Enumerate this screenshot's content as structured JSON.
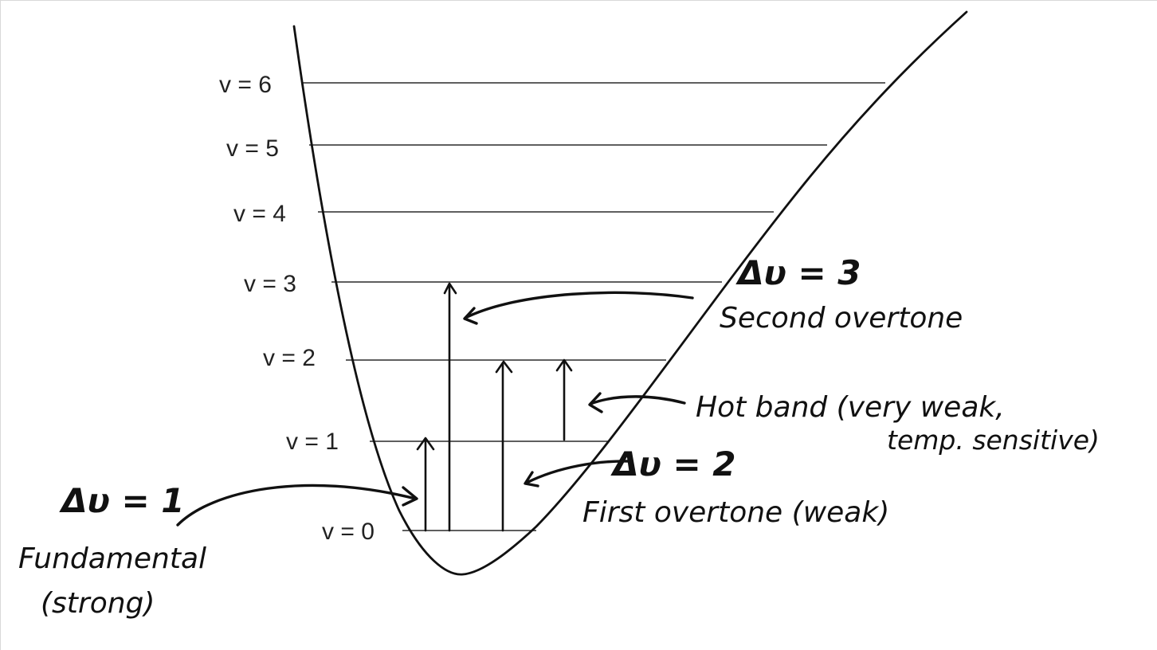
{
  "levels": [
    {
      "label": "v = 0"
    },
    {
      "label": "v = 1"
    },
    {
      "label": "v = 2"
    },
    {
      "label": "v = 3"
    },
    {
      "label": "v = 4"
    },
    {
      "label": "v = 5"
    },
    {
      "label": "v = 6"
    }
  ],
  "annotations": {
    "fundamental": {
      "delta": "Δυ = 1",
      "line1": "Fundamental",
      "line2": "(strong)"
    },
    "first_overtone": {
      "delta": "Δυ = 2",
      "line1": "First overtone (weak)"
    },
    "second_overtone": {
      "delta": "Δυ = 3",
      "line1": "Second overtone"
    },
    "hot_band": {
      "line1": "Hot band (very weak,",
      "line2": "temp. sensitive)"
    }
  }
}
